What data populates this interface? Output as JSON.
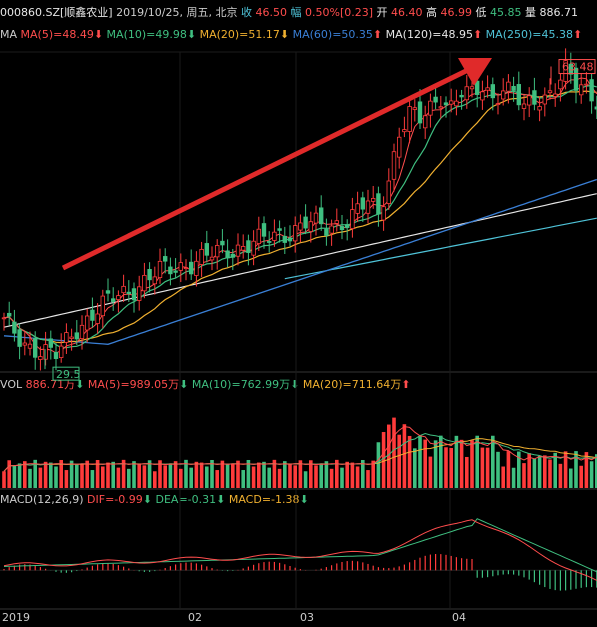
{
  "header": {
    "stock": "000860.SZ[顺鑫农业]",
    "date": "2019/10/25, 周五, 北京",
    "close_label": "收",
    "close_value": "46.50",
    "change_label": "幅",
    "change_value": "0.50%",
    "change_abs": "[0.23]",
    "open_label": "开",
    "open_value": "46.40",
    "high_label": "高",
    "high_value": "46.99",
    "low_label": "低",
    "low_value": "45.85",
    "volume_label": "量",
    "volume_value": "886.71"
  },
  "ma_header": {
    "label": "MA",
    "ma5": "MA(5)=48.49",
    "ma10": "MA(10)=49.98",
    "ma20": "MA(20)=51.17",
    "ma60": "MA(60)=50.35",
    "ma120": "MA(120)=48.95",
    "ma250": "MA(250)=45.38"
  },
  "vol_header": {
    "label": "VOL",
    "vol": "886.71万",
    "ma5": "MA(5)=989.05万",
    "ma10": "MA(10)=762.99万",
    "ma20": "MA(20)=711.64万"
  },
  "macd_header": {
    "label": "MACD(12,26,9)",
    "dif": "DIF=-0.99",
    "dea": "DEA=-0.31",
    "macd": "MACD=-1.38"
  },
  "annotations": {
    "high_marker": "63.48",
    "low_marker": "29.5"
  },
  "x_labels": [
    "2019",
    "02",
    "03",
    "04"
  ],
  "colors": {
    "up": "#ff3b3b",
    "down": "#3fbf80",
    "ma5": "#ff4d4d",
    "ma10": "#3fbf80",
    "ma20": "#f0b030",
    "ma60": "#3a7fd5",
    "ma120": "#e6e6e6",
    "ma250": "#4fc3d8",
    "arrow": "#e02a2a"
  },
  "chart_data": {
    "type": "candlestick",
    "price_range": [
      28,
      66
    ],
    "trend": "up",
    "annotated_high": 63.48,
    "annotated_low": 29.5,
    "price_waypoints": [
      [
        0,
        33.5
      ],
      [
        4,
        31.2
      ],
      [
        8,
        30.0
      ],
      [
        10,
        29.6
      ],
      [
        14,
        33.0
      ],
      [
        18,
        35.0
      ],
      [
        22,
        36.8
      ],
      [
        26,
        38.0
      ],
      [
        30,
        39.5
      ],
      [
        34,
        40.2
      ],
      [
        38,
        41.0
      ],
      [
        42,
        41.8
      ],
      [
        46,
        42.6
      ],
      [
        50,
        43.2
      ],
      [
        54,
        44.0
      ],
      [
        58,
        45.2
      ],
      [
        62,
        44.5
      ],
      [
        66,
        45.8
      ],
      [
        70,
        47.5
      ],
      [
        72,
        46.0
      ],
      [
        74,
        50.5
      ],
      [
        76,
        56.0
      ],
      [
        78,
        58.0
      ],
      [
        80,
        57.0
      ],
      [
        82,
        58.5
      ],
      [
        84,
        60.2
      ],
      [
        86,
        59.0
      ],
      [
        88,
        60.5
      ],
      [
        90,
        59.8
      ],
      [
        92,
        61.0
      ],
      [
        94,
        60.0
      ],
      [
        96,
        61.2
      ],
      [
        98,
        60.5
      ],
      [
        100,
        58.2
      ],
      [
        102,
        59.5
      ],
      [
        104,
        60.0
      ],
      [
        106,
        61.5
      ],
      [
        108,
        63.0
      ],
      [
        110,
        61.0
      ],
      [
        112,
        60.5
      ],
      [
        114,
        59.8
      ]
    ],
    "volume_range": [
      0,
      2000
    ],
    "volume_unit": "万",
    "macd_range": [
      -2.5,
      4
    ]
  }
}
